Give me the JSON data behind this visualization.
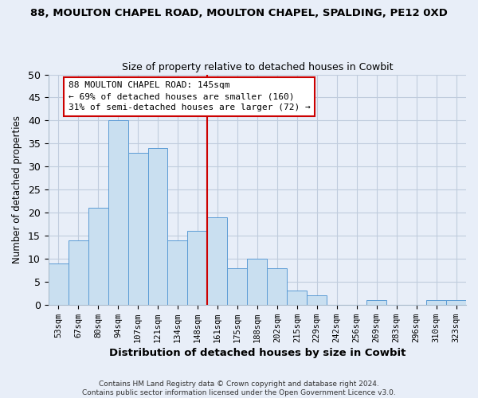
{
  "title": "88, MOULTON CHAPEL ROAD, MOULTON CHAPEL, SPALDING, PE12 0XD",
  "subtitle": "Size of property relative to detached houses in Cowbit",
  "xlabel": "Distribution of detached houses by size in Cowbit",
  "ylabel": "Number of detached properties",
  "footer_line1": "Contains HM Land Registry data © Crown copyright and database right 2024.",
  "footer_line2": "Contains public sector information licensed under the Open Government Licence v3.0.",
  "bar_labels": [
    "53sqm",
    "67sqm",
    "80sqm",
    "94sqm",
    "107sqm",
    "121sqm",
    "134sqm",
    "148sqm",
    "161sqm",
    "175sqm",
    "188sqm",
    "202sqm",
    "215sqm",
    "229sqm",
    "242sqm",
    "256sqm",
    "269sqm",
    "283sqm",
    "296sqm",
    "310sqm",
    "323sqm"
  ],
  "bar_values": [
    9,
    14,
    21,
    40,
    33,
    34,
    14,
    16,
    19,
    8,
    10,
    8,
    3,
    2,
    0,
    0,
    1,
    0,
    0,
    1,
    1
  ],
  "bar_color": "#c9dff0",
  "bar_edge_color": "#5b9bd5",
  "ylim": [
    0,
    50
  ],
  "yticks": [
    0,
    5,
    10,
    15,
    20,
    25,
    30,
    35,
    40,
    45,
    50
  ],
  "vline_x_idx": 7,
  "vline_color": "#cc0000",
  "annotation_title": "88 MOULTON CHAPEL ROAD: 145sqm",
  "annotation_line1": "← 69% of detached houses are smaller (160)",
  "annotation_line2": "31% of semi-detached houses are larger (72) →",
  "annotation_box_color": "#ffffff",
  "annotation_box_edge": "#cc0000",
  "bg_color": "#e8eef8"
}
